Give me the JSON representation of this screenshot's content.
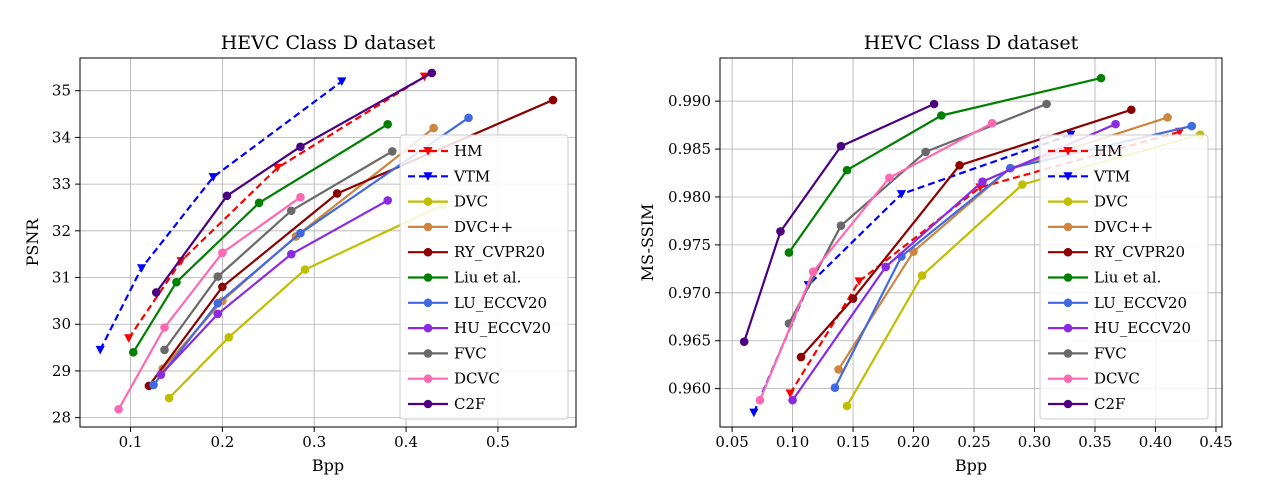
{
  "chart_data": [
    {
      "type": "line",
      "title": "HEVC Class D dataset",
      "xlabel": "Bpp",
      "ylabel": "PSNR",
      "xlim": [
        0.045,
        0.585
      ],
      "ylim": [
        27.8,
        35.7
      ],
      "xticks": [
        0.1,
        0.2,
        0.3,
        0.4,
        0.5
      ],
      "xtick_labels": [
        "0.1",
        "0.2",
        "0.3",
        "0.4",
        "0.5"
      ],
      "yticks": [
        28,
        29,
        30,
        31,
        32,
        33,
        34,
        35
      ],
      "ytick_labels": [
        "28",
        "29",
        "30",
        "31",
        "32",
        "33",
        "34",
        "35"
      ],
      "grid": true,
      "legend": "lower-right",
      "series": [
        {
          "name": "HM",
          "color": "#ff0000",
          "style": "dashed",
          "marker": "triangle-down",
          "x": [
            0.098,
            0.155,
            0.26,
            0.42
          ],
          "y": [
            29.7,
            31.35,
            33.35,
            35.3
          ]
        },
        {
          "name": "VTM",
          "color": "#0000ff",
          "style": "dashed",
          "marker": "triangle-down",
          "x": [
            0.067,
            0.112,
            0.19,
            0.33
          ],
          "y": [
            29.45,
            31.2,
            33.15,
            35.2
          ]
        },
        {
          "name": "DVC",
          "color": "#bfbf00",
          "style": "solid",
          "marker": "circle",
          "x": [
            0.142,
            0.207,
            0.29,
            0.44
          ],
          "y": [
            28.42,
            29.72,
            31.17,
            32.55
          ]
        },
        {
          "name": "DVC++",
          "color": "#cd853f",
          "style": "solid",
          "marker": "circle",
          "x": [
            0.135,
            0.2,
            0.28,
            0.43
          ],
          "y": [
            29.05,
            30.5,
            31.88,
            34.2
          ]
        },
        {
          "name": "RY_CVPR20",
          "color": "#8b0000",
          "style": "solid",
          "marker": "circle",
          "x": [
            0.12,
            0.2,
            0.325,
            0.56
          ],
          "y": [
            28.68,
            30.8,
            32.8,
            34.8
          ]
        },
        {
          "name": "Liu et al.",
          "color": "#008000",
          "style": "solid",
          "marker": "circle",
          "x": [
            0.103,
            0.15,
            0.24,
            0.38
          ],
          "y": [
            29.4,
            30.9,
            32.6,
            34.28
          ]
        },
        {
          "name": "LU_ECCV20",
          "color": "#4169e1",
          "style": "solid",
          "marker": "circle",
          "x": [
            0.125,
            0.195,
            0.285,
            0.468
          ],
          "y": [
            28.7,
            30.45,
            31.95,
            34.42
          ]
        },
        {
          "name": "HU_ECCV20",
          "color": "#8a2be2",
          "style": "solid",
          "marker": "circle",
          "x": [
            0.133,
            0.195,
            0.275,
            0.38
          ],
          "y": [
            28.92,
            30.22,
            31.5,
            32.65
          ]
        },
        {
          "name": "FVC",
          "color": "#696969",
          "style": "solid",
          "marker": "circle",
          "x": [
            0.137,
            0.195,
            0.275,
            0.385
          ],
          "y": [
            29.45,
            31.02,
            32.43,
            33.7
          ]
        },
        {
          "name": "DCVC",
          "color": "#ff69b4",
          "style": "solid",
          "marker": "circle",
          "x": [
            0.087,
            0.137,
            0.2,
            0.285
          ],
          "y": [
            28.18,
            29.93,
            31.53,
            32.72
          ]
        },
        {
          "name": "C2F",
          "color": "#4b0082",
          "style": "solid",
          "marker": "circle",
          "x": [
            0.128,
            0.205,
            0.285,
            0.428
          ],
          "y": [
            30.68,
            32.75,
            33.8,
            35.38
          ]
        }
      ]
    },
    {
      "type": "line",
      "title": "HEVC Class D dataset",
      "xlabel": "Bpp",
      "ylabel": "MS-SSIM",
      "xlim": [
        0.04,
        0.455
      ],
      "ylim": [
        0.956,
        0.9945
      ],
      "xticks": [
        0.05,
        0.1,
        0.15,
        0.2,
        0.25,
        0.3,
        0.35,
        0.4,
        0.45
      ],
      "xtick_labels": [
        "0.05",
        "0.10",
        "0.15",
        "0.20",
        "0.25",
        "0.30",
        "0.35",
        "0.40",
        "0.45"
      ],
      "yticks": [
        0.96,
        0.965,
        0.97,
        0.975,
        0.98,
        0.985,
        0.99
      ],
      "ytick_labels": [
        "0.960",
        "0.965",
        "0.970",
        "0.975",
        "0.980",
        "0.985",
        "0.990"
      ],
      "grid": true,
      "legend": "lower-right",
      "series": [
        {
          "name": "HM",
          "color": "#ff0000",
          "style": "dashed",
          "marker": "triangle-down",
          "x": [
            0.098,
            0.155,
            0.255,
            0.42
          ],
          "y": [
            0.9595,
            0.9712,
            0.981,
            0.9868
          ]
        },
        {
          "name": "VTM",
          "color": "#0000ff",
          "style": "dashed",
          "marker": "triangle-down",
          "x": [
            0.068,
            0.113,
            0.19,
            0.33
          ],
          "y": [
            0.9575,
            0.9708,
            0.9803,
            0.9865
          ]
        },
        {
          "name": "DVC",
          "color": "#bfbf00",
          "style": "solid",
          "marker": "circle",
          "x": [
            0.145,
            0.207,
            0.29,
            0.437
          ],
          "y": [
            0.9582,
            0.9718,
            0.9813,
            0.9865
          ]
        },
        {
          "name": "DVC++",
          "color": "#cd853f",
          "style": "solid",
          "marker": "circle",
          "x": [
            0.138,
            0.2,
            0.28,
            0.41
          ],
          "y": [
            0.962,
            0.9743,
            0.983,
            0.9883
          ]
        },
        {
          "name": "RY_CVPR20",
          "color": "#8b0000",
          "style": "solid",
          "marker": "circle",
          "x": [
            0.107,
            0.15,
            0.238,
            0.38
          ],
          "y": [
            0.9633,
            0.9694,
            0.9833,
            0.9891
          ]
        },
        {
          "name": "Liu et al.",
          "color": "#008000",
          "style": "solid",
          "marker": "circle",
          "x": [
            0.097,
            0.145,
            0.223,
            0.355
          ],
          "y": [
            0.9742,
            0.9828,
            0.9885,
            0.9924
          ]
        },
        {
          "name": "LU_ECCV20",
          "color": "#4169e1",
          "style": "solid",
          "marker": "circle",
          "x": [
            0.135,
            0.19,
            0.28,
            0.43
          ],
          "y": [
            0.9601,
            0.9738,
            0.983,
            0.9874
          ]
        },
        {
          "name": "HU_ECCV20",
          "color": "#8a2be2",
          "style": "solid",
          "marker": "circle",
          "x": [
            0.1,
            0.177,
            0.257,
            0.367
          ],
          "y": [
            0.9588,
            0.9727,
            0.9816,
            0.9876
          ]
        },
        {
          "name": "FVC",
          "color": "#696969",
          "style": "solid",
          "marker": "circle",
          "x": [
            0.097,
            0.14,
            0.21,
            0.31
          ],
          "y": [
            0.9668,
            0.977,
            0.9847,
            0.9897
          ]
        },
        {
          "name": "DCVC",
          "color": "#ff69b4",
          "style": "solid",
          "marker": "circle",
          "x": [
            0.073,
            0.117,
            0.18,
            0.265
          ],
          "y": [
            0.9588,
            0.9722,
            0.982,
            0.9877
          ]
        },
        {
          "name": "C2F",
          "color": "#4b0082",
          "style": "solid",
          "marker": "circle",
          "x": [
            0.06,
            0.09,
            0.14,
            0.217
          ],
          "y": [
            0.9649,
            0.9764,
            0.9853,
            0.9897
          ]
        }
      ]
    }
  ]
}
